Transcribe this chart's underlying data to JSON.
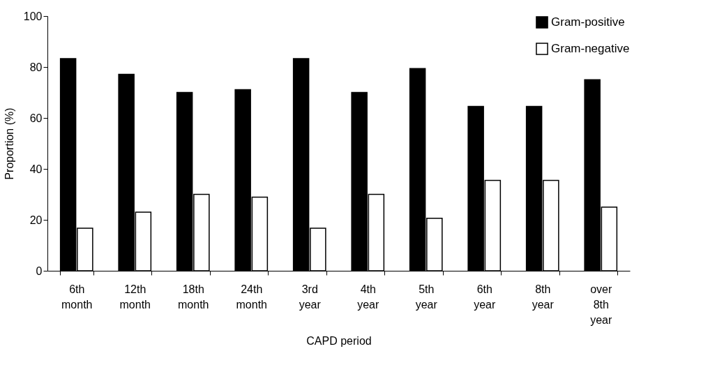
{
  "chart_data": {
    "type": "bar",
    "xlabel": "CAPD period",
    "ylabel": "Proportion (%)",
    "categories": [
      "6th month",
      "12th month",
      "18th month",
      "24th month",
      "3rd year",
      "4th year",
      "5th year",
      "6th year",
      "8th year",
      "over 8th year"
    ],
    "series": [
      {
        "name": "Gram-positive",
        "color": "#000000",
        "values": [
          83.3,
          77.1,
          70,
          71.1,
          83.3,
          70,
          79.4,
          64.5,
          64.5,
          75
        ]
      },
      {
        "name": "Gram-negative",
        "color": "#ffffff",
        "values": [
          16.7,
          23,
          30,
          28.9,
          16.7,
          30,
          20.6,
          35.5,
          35.5,
          25
        ]
      }
    ],
    "ylim": [
      0,
      100
    ],
    "yticks": [
      0,
      20,
      40,
      60,
      80,
      100
    ],
    "grid": false,
    "legend": "top right"
  }
}
